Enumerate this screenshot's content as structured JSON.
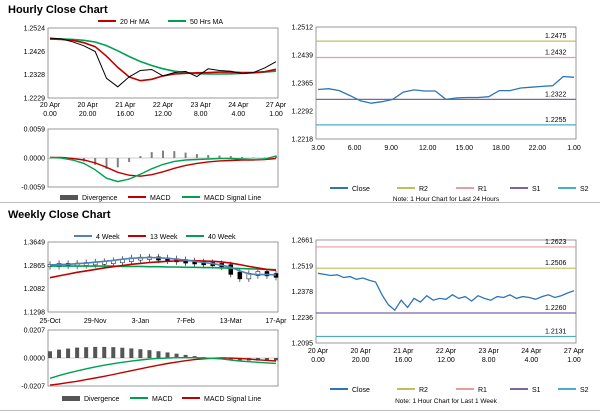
{
  "hourly_title": "Hourly Close Chart",
  "weekly_title": "Weekly Close Chart",
  "colors": {
    "price": "#000000",
    "red_ma": "#c00000",
    "green_ma": "#00a050",
    "blue_ma": "#4f81bd",
    "macd": "#00a050",
    "signal": "#c00000",
    "divergence": "#808080",
    "close": "#2e75b6",
    "r2": "#c4bd5e",
    "r1": "#e0a0a0",
    "s1": "#8064a2",
    "s2": "#4bacc6"
  },
  "chart_data": [
    {
      "type": "line",
      "title": "Hourly Close Chart - Price",
      "legend": [
        "20 Hr MA",
        "50 Hrs MA"
      ],
      "ylim": [
        1.2229,
        1.2524
      ],
      "yticks": [
        "1.2524",
        "1.2426",
        "1.2328",
        "1.2229"
      ],
      "xticks": [
        [
          "20 Apr",
          "0.00"
        ],
        [
          "20 Apr",
          "20.00"
        ],
        [
          "21 Apr",
          "16.00"
        ],
        [
          "22 Apr",
          "12.00"
        ],
        [
          "23 Apr",
          "8.00"
        ],
        [
          "24 Apr",
          "4.00"
        ],
        [
          "27 Apr",
          "1.00"
        ]
      ],
      "x": [
        0,
        3,
        6,
        9,
        12,
        15,
        18,
        21,
        24,
        27,
        30,
        33,
        36,
        39,
        42,
        45,
        48,
        51,
        54,
        57,
        60
      ],
      "price": [
        1.2482,
        1.2478,
        1.2466,
        1.2449,
        1.2425,
        1.2312,
        1.2276,
        1.2318,
        1.2345,
        1.2349,
        1.2322,
        1.2336,
        1.2341,
        1.2319,
        1.2352,
        1.2345,
        1.2342,
        1.2332,
        1.2336,
        1.2356,
        1.2382
      ],
      "ma20": [
        1.2478,
        1.2476,
        1.2472,
        1.2462,
        1.2445,
        1.2405,
        1.2358,
        1.2318,
        1.2302,
        1.2308,
        1.2322,
        1.233,
        1.2333,
        1.2335,
        1.2336,
        1.2338,
        1.2338,
        1.2336,
        1.2336,
        1.234,
        1.235
      ],
      "ma50": [
        1.2478,
        1.2478,
        1.2476,
        1.2472,
        1.2465,
        1.245,
        1.2428,
        1.2404,
        1.2383,
        1.2366,
        1.2352,
        1.2342,
        1.2336,
        1.2332,
        1.233,
        1.233,
        1.2331,
        1.2333,
        1.2335,
        1.2338,
        1.2342
      ]
    },
    {
      "type": "line",
      "title": "Hourly Close Chart - MACD",
      "legend": [
        "Divergence",
        "MACD",
        "MACD Signal Line"
      ],
      "ylim": [
        -0.0059,
        0.0059
      ],
      "yticks": [
        "0.0059",
        "0.0000",
        "-0.0059"
      ],
      "x": [
        0,
        3,
        6,
        9,
        12,
        15,
        18,
        21,
        24,
        27,
        30,
        33,
        36,
        39,
        42,
        45,
        48,
        51,
        54,
        57,
        60
      ],
      "macd": [
        0.0001,
        0.0,
        -0.0004,
        -0.0011,
        -0.0024,
        -0.0041,
        -0.0048,
        -0.0043,
        -0.0033,
        -0.0022,
        -0.0013,
        -0.0007,
        -0.0004,
        -0.0003,
        -0.0002,
        -0.0001,
        -0.0001,
        -0.0002,
        -0.0003,
        -0.0002,
        0.0004
      ],
      "signal": [
        0.0001,
        0.0001,
        -0.0001,
        -0.0004,
        -0.001,
        -0.0019,
        -0.0029,
        -0.0035,
        -0.0037,
        -0.0034,
        -0.0028,
        -0.0021,
        -0.0015,
        -0.0011,
        -0.0008,
        -0.0006,
        -0.0005,
        -0.0004,
        -0.0004,
        -0.0003,
        -0.0001
      ],
      "divergence": [
        0.0,
        -0.0001,
        -0.0003,
        -0.0007,
        -0.0014,
        -0.0022,
        -0.0019,
        -0.0008,
        0.0004,
        0.0012,
        0.0015,
        0.0014,
        0.0011,
        0.0008,
        0.0006,
        0.0005,
        0.0004,
        0.0002,
        0.0001,
        0.0001,
        0.0005
      ]
    },
    {
      "type": "line",
      "title": "Hourly - Note: 1 Hour Chart for Last 24 Hours",
      "legend": [
        "Close",
        "R2",
        "R1",
        "S1",
        "S2"
      ],
      "ylim": [
        1.2218,
        1.2512
      ],
      "yticks": [
        "1.2512",
        "1.2439",
        "1.2365",
        "1.2292",
        "1.2218"
      ],
      "xticks": [
        "3.00",
        "6.00",
        "9.00",
        "12.00",
        "15.00",
        "18.00",
        "22.00",
        "1.00"
      ],
      "levels": {
        "R2": 1.2475,
        "R1": 1.2432,
        "S1": 1.2322,
        "S2": 1.2255
      },
      "level_labels": {
        "R2": "1.2475",
        "R1": "1.2432",
        "S1": "1.2322",
        "S2": "1.2255"
      },
      "x": [
        0,
        1,
        2,
        3,
        4,
        5,
        6,
        7,
        8,
        9,
        10,
        11,
        12,
        13,
        14,
        15,
        16,
        17,
        18,
        19,
        20,
        21,
        22,
        23,
        24
      ],
      "close": [
        1.2348,
        1.235,
        1.2345,
        1.2332,
        1.2318,
        1.2312,
        1.2316,
        1.2322,
        1.2341,
        1.2347,
        1.2344,
        1.2344,
        1.2322,
        1.2326,
        1.2327,
        1.2327,
        1.2329,
        1.2345,
        1.2345,
        1.2352,
        1.2354,
        1.2356,
        1.2358,
        1.2382,
        1.238
      ]
    },
    {
      "type": "line",
      "title": "Weekly Close Chart - Price",
      "legend": [
        "4 Week",
        "13 Week",
        "40 Week"
      ],
      "ylim": [
        1.1298,
        1.3649
      ],
      "yticks": [
        "1.3649",
        "1.2865",
        "1.2082",
        "1.1298"
      ],
      "xticks": [
        "25-Oct",
        "29-Nov",
        "3-Jan",
        "7-Feb",
        "13-Mar",
        "17-Apr"
      ],
      "x": [
        0,
        1,
        2,
        3,
        4,
        5,
        6,
        7,
        8,
        9,
        10,
        11,
        12,
        13,
        14,
        15,
        16,
        17,
        18,
        19,
        20,
        21,
        22,
        23,
        24,
        25
      ],
      "close": [
        1.286,
        1.289,
        1.288,
        1.29,
        1.292,
        1.294,
        1.296,
        1.299,
        1.303,
        1.308,
        1.31,
        1.311,
        1.308,
        1.305,
        1.302,
        1.298,
        1.295,
        1.292,
        1.289,
        1.285,
        1.26,
        1.245,
        1.256,
        1.262,
        1.255,
        1.25
      ],
      "w4": [
        1.288,
        1.289,
        1.29,
        1.292,
        1.294,
        1.297,
        1.3,
        1.303,
        1.307,
        1.31,
        1.312,
        1.313,
        1.312,
        1.31,
        1.307,
        1.304,
        1.3,
        1.296,
        1.292,
        1.287,
        1.28,
        1.268,
        1.258,
        1.255,
        1.256,
        1.254
      ],
      "w13": [
        1.245,
        1.251,
        1.257,
        1.263,
        1.268,
        1.273,
        1.278,
        1.282,
        1.286,
        1.29,
        1.293,
        1.296,
        1.298,
        1.3,
        1.301,
        1.302,
        1.302,
        1.301,
        1.3,
        1.298,
        1.294,
        1.289,
        1.283,
        1.278,
        1.273,
        1.27
      ],
      "w40": [
        1.284,
        1.284,
        1.284,
        1.284,
        1.284,
        1.284,
        1.284,
        1.284,
        1.283,
        1.283,
        1.283,
        1.282,
        1.282,
        1.281,
        1.281,
        1.28,
        1.28,
        1.279,
        1.279,
        1.278,
        1.277,
        1.276,
        1.275,
        1.274,
        1.273,
        1.272
      ]
    },
    {
      "type": "line",
      "title": "Weekly Close Chart - MACD",
      "legend": [
        "Divergence",
        "MACD",
        "MACD Signal Line"
      ],
      "ylim": [
        -0.0207,
        0.0207
      ],
      "yticks": [
        "0.0207",
        "0.0000",
        "-0.0207"
      ],
      "x": [
        0,
        1,
        2,
        3,
        4,
        5,
        6,
        7,
        8,
        9,
        10,
        11,
        12,
        13,
        14,
        15,
        16,
        17,
        18,
        19,
        20,
        21,
        22,
        23,
        24,
        25
      ],
      "macd": [
        -0.015,
        -0.013,
        -0.0112,
        -0.0095,
        -0.008,
        -0.0066,
        -0.0053,
        -0.0042,
        -0.0032,
        -0.0023,
        -0.0015,
        -0.0008,
        -0.0003,
        0.0,
        0.0002,
        0.0003,
        0.0002,
        0.0,
        -0.0003,
        -0.0007,
        -0.0015,
        -0.0022,
        -0.0027,
        -0.0032,
        -0.0036,
        -0.004
      ],
      "signal": [
        -0.02,
        -0.0192,
        -0.0182,
        -0.0172,
        -0.016,
        -0.0148,
        -0.0135,
        -0.0122,
        -0.0108,
        -0.0094,
        -0.008,
        -0.0066,
        -0.0053,
        -0.0041,
        -0.003,
        -0.002,
        -0.0012,
        -0.0006,
        -0.0002,
        0.0,
        -0.0001,
        -0.0004,
        -0.0008,
        -0.0013,
        -0.0018,
        -0.0022
      ],
      "divergence": [
        0.005,
        0.0062,
        0.007,
        0.0077,
        0.008,
        0.0082,
        0.0082,
        0.008,
        0.0076,
        0.0071,
        0.0065,
        0.0058,
        0.005,
        0.0041,
        0.0032,
        0.0023,
        0.0014,
        0.0006,
        -0.0001,
        -0.0007,
        -0.0014,
        -0.0018,
        -0.0019,
        -0.0019,
        -0.0018,
        -0.0018
      ]
    },
    {
      "type": "line",
      "title": "Weekly - Note: 1 Hour Chart for Last 1 Week",
      "legend": [
        "Close",
        "R2",
        "R1",
        "S1",
        "S2"
      ],
      "ylim": [
        1.2095,
        1.2661
      ],
      "yticks": [
        "1.2661",
        "1.2519",
        "1.2378",
        "1.2236",
        "1.2095"
      ],
      "xticks": [
        [
          "20 Apr",
          "0.00"
        ],
        [
          "20 Apr",
          "20.00"
        ],
        [
          "21 Apr",
          "16.00"
        ],
        [
          "22 Apr",
          "12.00"
        ],
        [
          "23 Apr",
          "8.00"
        ],
        [
          "24 Apr",
          "4.00"
        ],
        [
          "27 Apr",
          "1.00"
        ]
      ],
      "levels": {
        "R2": 1.2506,
        "R1": 1.2623,
        "S1": 1.226,
        "S2": 1.2131
      },
      "level_labels": {
        "R2": "1.2506",
        "R1": "1.2623",
        "S1": "1.2260",
        "S2": "1.2131"
      },
      "x": [
        0,
        3,
        6,
        9,
        12,
        15,
        18,
        21,
        24,
        27,
        30,
        33,
        36,
        39,
        42,
        45,
        48,
        51,
        54,
        57,
        60,
        63,
        66,
        69,
        72,
        75,
        78,
        81,
        84,
        87,
        90,
        93,
        96,
        99,
        102,
        105,
        108,
        111,
        114,
        117,
        120
      ],
      "close": [
        1.2478,
        1.2472,
        1.2466,
        1.247,
        1.2455,
        1.246,
        1.2445,
        1.2452,
        1.244,
        1.243,
        1.236,
        1.2305,
        1.2275,
        1.233,
        1.229,
        1.234,
        1.232,
        1.2355,
        1.233,
        1.234,
        1.2335,
        1.236,
        1.234,
        1.235,
        1.2325,
        1.2355,
        1.234,
        1.233,
        1.235,
        1.2345,
        1.236,
        1.234,
        1.235,
        1.2345,
        1.2335,
        1.235,
        1.236,
        1.2345,
        1.2355,
        1.237,
        1.2382
      ]
    }
  ]
}
